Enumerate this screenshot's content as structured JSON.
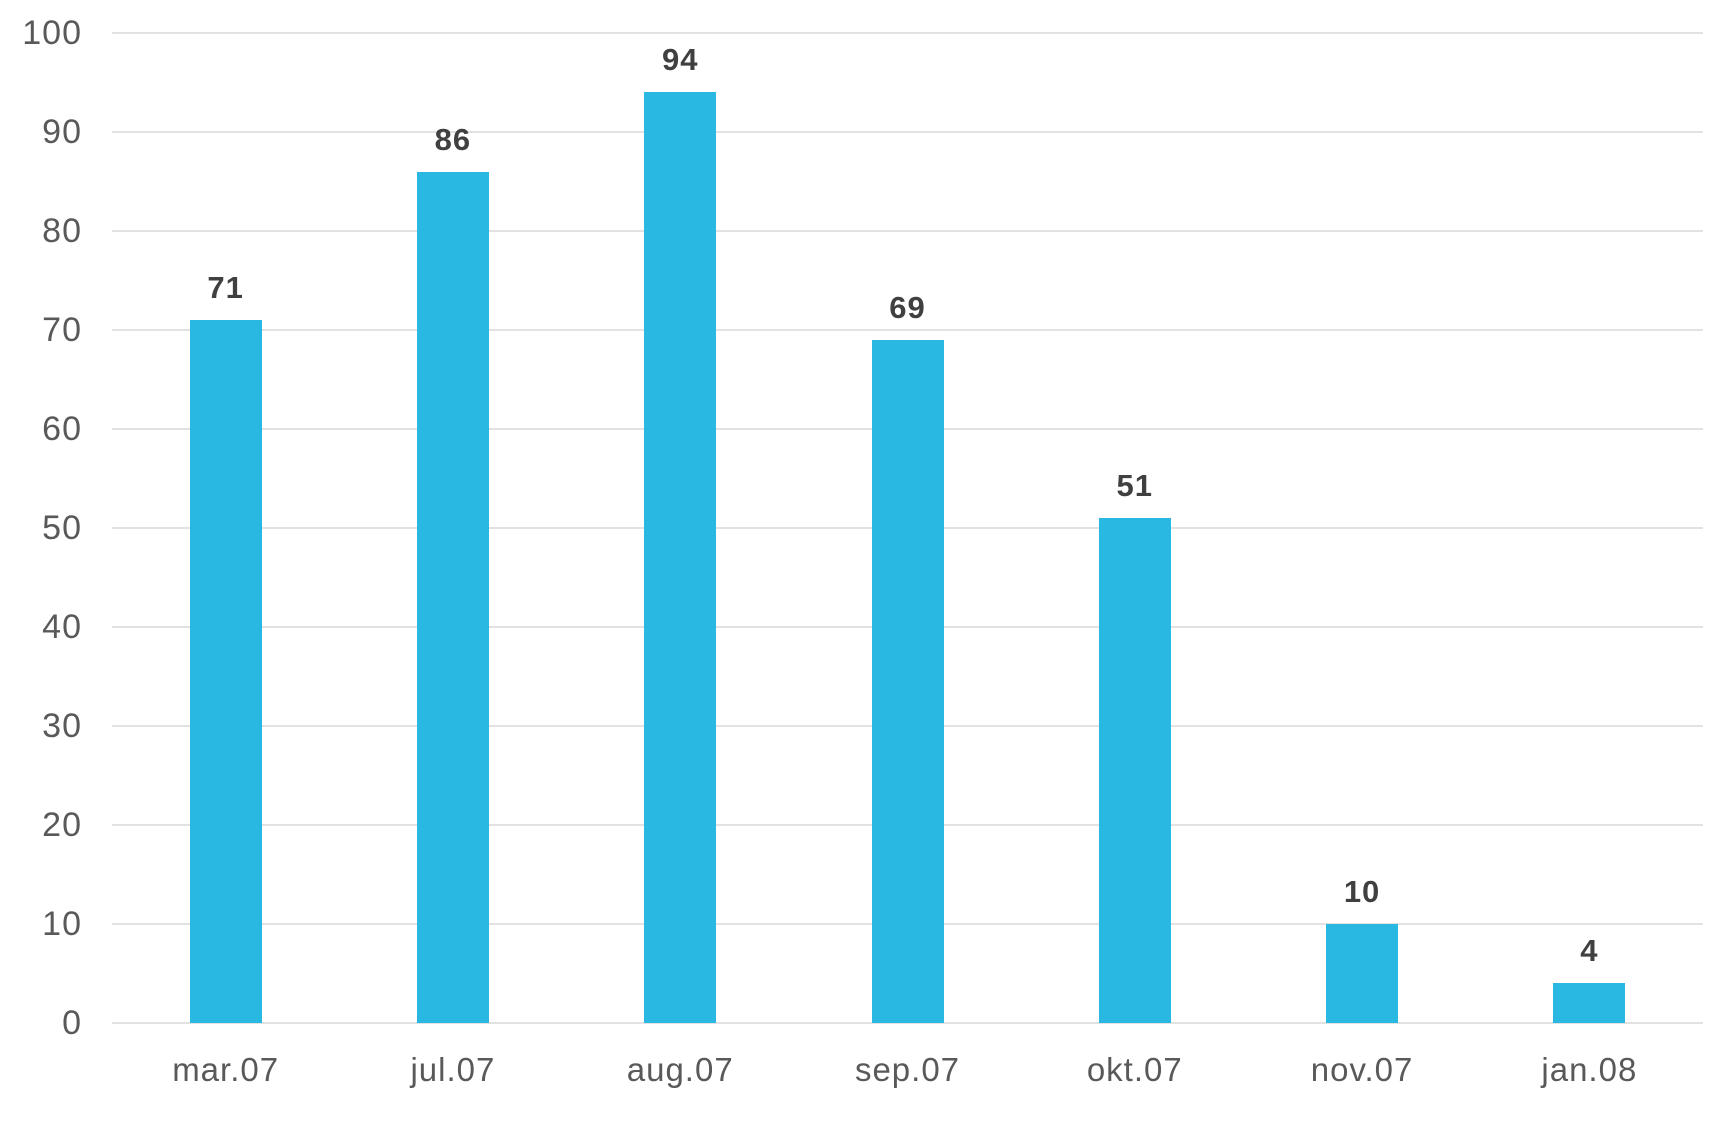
{
  "chart_data": {
    "type": "bar",
    "title": "",
    "xlabel": "",
    "ylabel": "",
    "categories": [
      "mar.07",
      "jul.07",
      "aug.07",
      "sep.07",
      "okt.07",
      "nov.07",
      "jan.08"
    ],
    "values": [
      71,
      86,
      94,
      69,
      51,
      10,
      4
    ],
    "value_labels": [
      "71",
      "86",
      "94",
      "69",
      "51",
      "10",
      "4"
    ],
    "ylim": [
      0,
      100
    ],
    "yticks": [
      0,
      10,
      20,
      30,
      40,
      50,
      60,
      70,
      80,
      90,
      100
    ],
    "grid": true,
    "legend": false,
    "colors": {
      "bar": "#29B8E2",
      "value_label_text": "#404040",
      "axis_tick_text": "#595959",
      "gridline": "#E2E2E2",
      "background": "#FFFFFF"
    }
  }
}
